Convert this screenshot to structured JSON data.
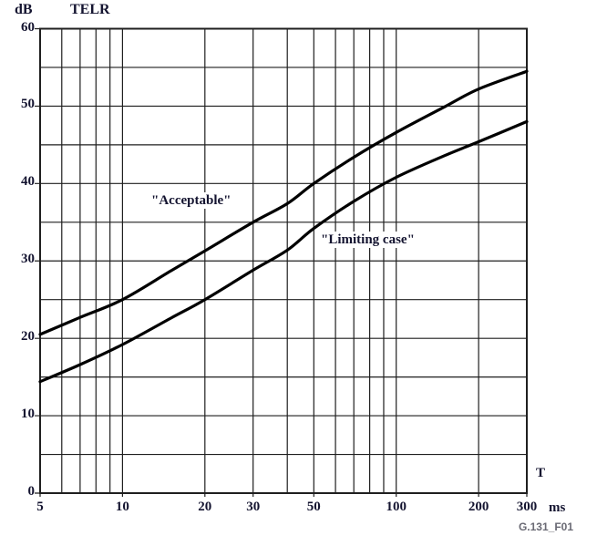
{
  "figure": {
    "y_unit_label": "dB",
    "y_axis_title": "TELR",
    "x_axis_title": "T",
    "x_unit_label": "ms",
    "caption": "G.131_F01",
    "colors": {
      "curve": "#000000",
      "grid": "#1f1f1f",
      "frame": "#1f1f1f",
      "tick_text": "#141430",
      "caption_text": "#6a6a74",
      "background": "#ffffff"
    }
  },
  "chart_data": {
    "type": "line",
    "title": "",
    "xlabel": "T (ms)",
    "ylabel": "TELR (dB)",
    "x_scale": "log",
    "xlim": [
      5,
      300
    ],
    "ylim": [
      0,
      60
    ],
    "grid": "on",
    "legend_position": "inline-annotations",
    "x_ticks_labeled": [
      5,
      10,
      20,
      30,
      50,
      100,
      200,
      300
    ],
    "x_gridlines": [
      5,
      6,
      7,
      8,
      9,
      10,
      20,
      30,
      40,
      50,
      60,
      70,
      80,
      90,
      100,
      200,
      300
    ],
    "y_ticks_labeled": [
      0,
      10,
      20,
      30,
      40,
      50,
      60
    ],
    "y_grid_step": 5,
    "series": [
      {
        "name": "\"Acceptable\"",
        "points": [
          [
            5,
            20.5
          ],
          [
            7,
            22.7
          ],
          [
            10,
            25
          ],
          [
            15,
            28.7
          ],
          [
            20,
            31.3
          ],
          [
            30,
            35
          ],
          [
            40,
            37.4
          ],
          [
            50,
            40
          ],
          [
            70,
            43.4
          ],
          [
            100,
            46.6
          ],
          [
            150,
            49.9
          ],
          [
            200,
            52.2
          ],
          [
            300,
            54.5
          ]
        ]
      },
      {
        "name": "\"Limiting case\"",
        "points": [
          [
            5,
            14.4
          ],
          [
            7,
            16.6
          ],
          [
            10,
            19.2
          ],
          [
            15,
            22.6
          ],
          [
            20,
            25
          ],
          [
            30,
            28.8
          ],
          [
            40,
            31.4
          ],
          [
            50,
            34.2
          ],
          [
            70,
            37.7
          ],
          [
            100,
            40.8
          ],
          [
            150,
            43.6
          ],
          [
            200,
            45.4
          ],
          [
            300,
            48
          ]
        ]
      }
    ]
  }
}
